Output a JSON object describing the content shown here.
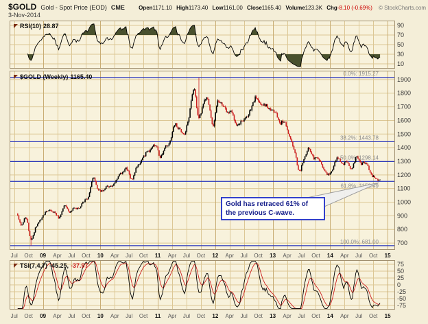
{
  "header": {
    "symbol": "$GOLD",
    "description": "Gold - Spot Price (EOD)",
    "exchange": "CME",
    "copyright": "© StockCharts.com",
    "date": "3-Nov-2014",
    "quote": {
      "open_label": "Open",
      "open": "1171.10",
      "high_label": "High",
      "high": "1173.40",
      "low_label": "Low",
      "low": "1161.00",
      "close_label": "Close",
      "close": "1165.40",
      "volume_label": "Volume",
      "volume": "123.3K",
      "chg_label": "Chg",
      "chg": "-8.10 (-0.69%)"
    }
  },
  "panels": {
    "rsi": {
      "label": "RSI(10)",
      "value": "28.87"
    },
    "price": {
      "label": "$GOLD (Weekly)",
      "value": "1165.40"
    },
    "tsi": {
      "label": "TSI(7,4,7)",
      "value1": "-45.25,",
      "value2": "-37.97"
    }
  },
  "annotation": {
    "line1": "Gold has retraced 61% of",
    "line2": "the previous C-wave."
  },
  "colors": {
    "page_bg": "#f4eed8",
    "panel_bg": "#f8f2dc",
    "grid": "#dcc795",
    "grid_year": "#c9ad74",
    "border": "#a19070",
    "axis_text": "#333333",
    "month_text": "#555555",
    "year_text": "#111111",
    "fib_blue": "#2633bb",
    "fib_label": "#8c8c8c",
    "candle_up": "#000000",
    "candle_down": "#cc2020",
    "rsi_line": "#000000",
    "rsi_fill": "#49512e",
    "tsi_line": "#000000",
    "tsi_signal": "#cc2020",
    "chg_red": "#cc0000",
    "annotation_border": "#3340cc",
    "annotation_text": "#18208c",
    "callout_fill": "#f0f0f0",
    "callout_stroke": "#999999"
  },
  "chart_data": [
    {
      "id": "rsi",
      "type": "line",
      "indicator": "RSI(10)",
      "last": 28.87,
      "ylim": [
        0,
        100
      ],
      "y_ticks": [
        90,
        70,
        50,
        30,
        10
      ],
      "overbought": 70,
      "oversold": 30,
      "derived_from": "price.monthly_close"
    },
    {
      "id": "price",
      "type": "candlestick",
      "symbol": "$GOLD",
      "timeframe": "Weekly",
      "last": 1165.4,
      "ylim": [
        650,
        1965
      ],
      "xlim": [
        2008.42,
        2015.13
      ],
      "y_ticks": [
        1900,
        1800,
        1700,
        1600,
        1500,
        1400,
        1300,
        1200,
        1100,
        1000,
        900,
        800,
        700
      ],
      "x_ticks": [
        {
          "t": 2008.5,
          "label": "Jul"
        },
        {
          "t": 2008.75,
          "label": "Oct"
        },
        {
          "t": 2009.0,
          "label": "09",
          "year": true
        },
        {
          "t": 2009.25,
          "label": "Apr"
        },
        {
          "t": 2009.5,
          "label": "Jul"
        },
        {
          "t": 2009.75,
          "label": "Oct"
        },
        {
          "t": 2010.0,
          "label": "10",
          "year": true
        },
        {
          "t": 2010.25,
          "label": "Apr"
        },
        {
          "t": 2010.5,
          "label": "Jul"
        },
        {
          "t": 2010.75,
          "label": "Oct"
        },
        {
          "t": 2011.0,
          "label": "11",
          "year": true
        },
        {
          "t": 2011.25,
          "label": "Apr"
        },
        {
          "t": 2011.5,
          "label": "Jul"
        },
        {
          "t": 2011.75,
          "label": "Oct"
        },
        {
          "t": 2012.0,
          "label": "12",
          "year": true
        },
        {
          "t": 2012.25,
          "label": "Apr"
        },
        {
          "t": 2012.5,
          "label": "Jul"
        },
        {
          "t": 2012.75,
          "label": "Oct"
        },
        {
          "t": 2013.0,
          "label": "13",
          "year": true
        },
        {
          "t": 2013.25,
          "label": "Apr"
        },
        {
          "t": 2013.5,
          "label": "Jul"
        },
        {
          "t": 2013.75,
          "label": "Oct"
        },
        {
          "t": 2014.0,
          "label": "14",
          "year": true
        },
        {
          "t": 2014.25,
          "label": "Apr"
        },
        {
          "t": 2014.5,
          "label": "Jul"
        },
        {
          "t": 2014.75,
          "label": "Oct"
        },
        {
          "t": 2015.0,
          "label": "15",
          "year": true
        }
      ],
      "monthly_close": {
        "t_start": 2008.542,
        "t_end": 2014.875,
        "values": [
          915,
          833,
          884,
          725,
          816,
          870,
          925,
          940,
          920,
          888,
          975,
          930,
          953,
          955,
          1007,
          1040,
          1175,
          1095,
          1080,
          1118,
          1113,
          1180,
          1214,
          1244,
          1170,
          1247,
          1308,
          1358,
          1385,
          1420,
          1333,
          1410,
          1438,
          1563,
          1535,
          1500,
          1628,
          1826,
          1622,
          1722,
          1746,
          1564,
          1737,
          1710,
          1668,
          1664,
          1558,
          1598,
          1615,
          1687,
          1772,
          1719,
          1714,
          1676,
          1661,
          1580,
          1597,
          1472,
          1387,
          1234,
          1312,
          1395,
          1327,
          1323,
          1253,
          1202,
          1244,
          1326,
          1284,
          1291,
          1250,
          1327,
          1282,
          1287,
          1208,
          1173,
          1165.4
        ]
      },
      "extremes": [
        {
          "t": 2011.708,
          "price": 1915.27,
          "type": "high"
        },
        {
          "t": 2008.792,
          "price": 681.0,
          "type": "low"
        }
      ],
      "fib_levels": [
        {
          "label": "0.0%",
          "value": 1915.27
        },
        {
          "label": "38.2%",
          "value": 1443.78
        },
        {
          "label": "50.0%",
          "value": 1298.14
        },
        {
          "label": "61.8%",
          "value": 1152.49,
          "label_below": true
        },
        {
          "label": "100.0%",
          "value": 681.0
        }
      ]
    },
    {
      "id": "tsi",
      "type": "line",
      "indicator": "TSI(7,4,7)",
      "last": [
        -45.25,
        -37.97
      ],
      "ylim": [
        -90,
        90
      ],
      "y_ticks": [
        75,
        50,
        25,
        0,
        -25,
        -50,
        -75
      ],
      "derived_from": "price.monthly_close"
    }
  ]
}
